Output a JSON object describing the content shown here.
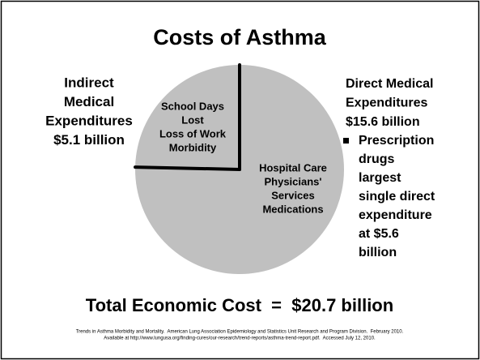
{
  "chart_data": {
    "type": "pie",
    "title": "Costs of Asthma",
    "categories": [
      [
        "Indirect",
        "Medical",
        "Expenditures"
      ],
      [
        "Direct Medical",
        "Expenditures"
      ]
    ],
    "values": [
      5.1,
      15.6
    ],
    "value_labels": [
      "$5.1 billion",
      "$15.6 billion"
    ],
    "slice_texts": [
      [
        "School Days",
        "Lost",
        "Loss of Work",
        "Morbidity"
      ],
      [
        "Hospital Care",
        "Physicians'",
        "Services",
        "Medications"
      ]
    ],
    "color": "#c0c0c0",
    "edge_color": "#000000",
    "bullet": [
      "Prescription",
      "drugs",
      "largest",
      "single direct",
      "expenditure",
      "at $5.6",
      "billion"
    ],
    "total": "Total Economic Cost  =  $20.7 billion",
    "source": [
      "Trends in Asthma Morbidity and Mortality.  American Lung Association Epidemiology and Statistics Unit Research and Program Division.  February 2010.",
      "Available at http://www.lungusa.org/finding-cures/our-research/trend-reports/asthma-trend-report.pdf.  Accessed July 12, 2010."
    ]
  }
}
